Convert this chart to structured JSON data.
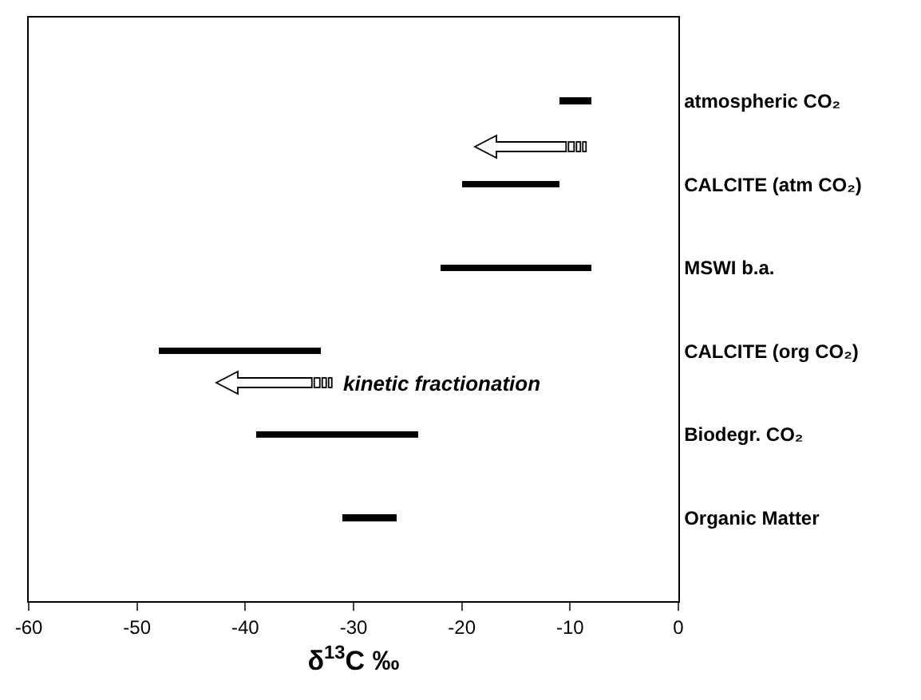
{
  "chart_data": {
    "type": "bar",
    "orientation": "horizontal",
    "categories": [
      "atmospheric CO₂",
      "CALCITE (atm CO₂)",
      "MSWI b.a.",
      "CALCITE (org CO₂)",
      "Biodegr. CO₂",
      "Organic Matter"
    ],
    "base": [
      -11,
      -20,
      -22,
      -48,
      -39,
      -31
    ],
    "values": [
      3,
      9,
      14,
      15,
      15,
      5
    ],
    "color": "#000000",
    "xlim": [
      -60,
      0
    ],
    "xticks": [
      -60,
      -50,
      -40,
      -30,
      -20,
      -10,
      0
    ],
    "xlabel": "δ$^{13}$C ‰",
    "annotations": [
      "kinetic fractionation"
    ]
  }
}
